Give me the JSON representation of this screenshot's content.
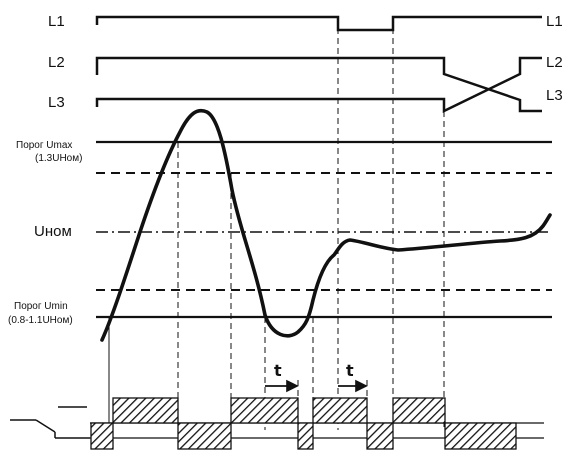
{
  "phase_lines": {
    "l1_label_left": "L1",
    "l1_label_right": "L1",
    "l2_label_left": "L2",
    "l2_label_right": "L2",
    "l3_label_left": "L3",
    "l3_label_right": "L3"
  },
  "thresholds": {
    "umax_label": "Порог Umax",
    "umax_value": "(1.3UНом)",
    "unom_label": "Uном",
    "umin_label": "Порог Umin",
    "umin_value": "(0.8-1.1UНом)"
  },
  "delay_labels": {
    "t1": "t",
    "t2": "t"
  }
}
